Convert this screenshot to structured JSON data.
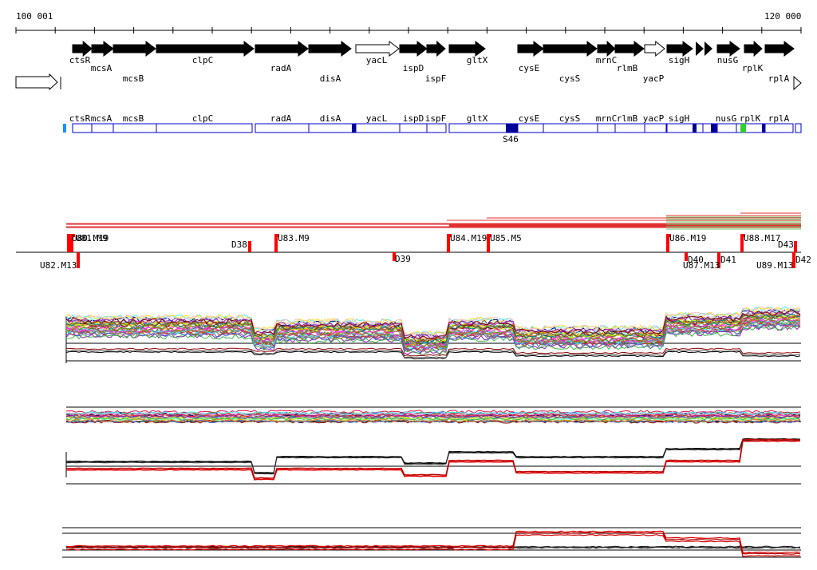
{
  "ruler": {
    "start_label": "100 001",
    "end_label": "120 000"
  },
  "genes": [
    {
      "name": "ctsR",
      "strand": "+",
      "filled": true
    },
    {
      "name": "mcsA",
      "strand": "+",
      "filled": true
    },
    {
      "name": "mcsB",
      "strand": "+",
      "filled": true
    },
    {
      "name": "clpC",
      "strand": "+",
      "filled": true
    },
    {
      "name": "radA",
      "strand": "+",
      "filled": true
    },
    {
      "name": "disA",
      "strand": "+",
      "filled": true
    },
    {
      "name": "yacL",
      "strand": "+",
      "filled": false
    },
    {
      "name": "ispD",
      "strand": "+",
      "filled": true
    },
    {
      "name": "ispF",
      "strand": "+",
      "filled": true
    },
    {
      "name": "gltX",
      "strand": "+",
      "filled": true
    },
    {
      "name": "cysE",
      "strand": "+",
      "filled": true
    },
    {
      "name": "cysS",
      "strand": "+",
      "filled": true
    },
    {
      "name": "mrnC",
      "strand": "+",
      "filled": true
    },
    {
      "name": "rlmB",
      "strand": "+",
      "filled": true
    },
    {
      "name": "yacP",
      "strand": "+",
      "filled": false
    },
    {
      "name": "sigH",
      "strand": "+",
      "filled": true
    },
    {
      "name": "nusG",
      "strand": "+",
      "filled": true
    },
    {
      "name": "rplK",
      "strand": "+",
      "filled": true
    },
    {
      "name": "rplA",
      "strand": "+",
      "filled": true
    }
  ],
  "operon_labels": [
    "ctsR",
    "mcsA",
    "mcsB",
    "clpC",
    "radA",
    "disA",
    "yacL",
    "ispD",
    "ispF",
    "gltX",
    "cysE",
    "cysS",
    "mrnC",
    "rlmB",
    "yacP",
    "sigH",
    "nusG",
    "rplK",
    "rplA"
  ],
  "operon_marker": "S46",
  "upshifts": [
    {
      "label": "U80.M19"
    },
    {
      "label": "U81.M9"
    },
    {
      "label": "U83.M9"
    },
    {
      "label": "U84.M19"
    },
    {
      "label": "U85.M5"
    },
    {
      "label": "U86.M19"
    },
    {
      "label": "U88.M17"
    }
  ],
  "downshifts_top": [
    {
      "label": "D38"
    },
    {
      "label": "D43"
    }
  ],
  "below_axis": [
    {
      "label": "U82.M13"
    },
    {
      "label": "D39"
    },
    {
      "label": "D40"
    },
    {
      "label": "U87.M13"
    },
    {
      "label": "D41"
    },
    {
      "label": "U89.M13"
    },
    {
      "label": "D42"
    }
  ],
  "colors": {
    "gene_fill": "#000000",
    "operon_border": "#0000cc",
    "operon_dark": "#000099",
    "marker_green": "#33cc33",
    "marker_cyan": "#1e90ff",
    "shift_red": "#ff0000",
    "green_bar": "#66cc66"
  }
}
